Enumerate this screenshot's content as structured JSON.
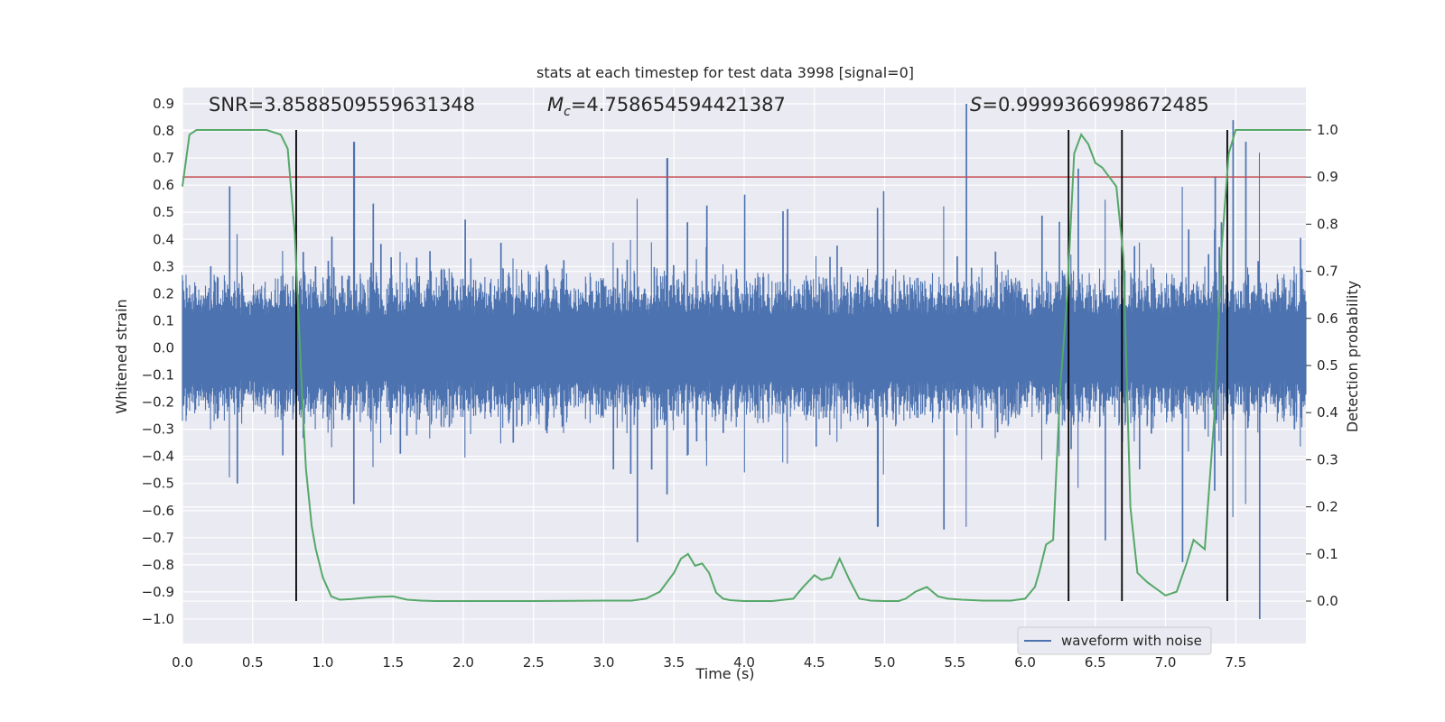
{
  "chart_data": {
    "type": "line",
    "title": "stats at each timestep for test data 3998 [signal=0]",
    "xlabel": "Time (s)",
    "ylabel_left": "Whitened strain",
    "ylabel_right": "Detection probability",
    "xlim": [
      0.0,
      8.0
    ],
    "ylim_left": [
      -1.09,
      0.96
    ],
    "ylim_right": [
      -0.09,
      1.09
    ],
    "xticks": [
      "0.0",
      "0.5",
      "1.0",
      "1.5",
      "2.0",
      "2.5",
      "3.0",
      "3.5",
      "4.0",
      "4.5",
      "5.0",
      "5.5",
      "6.0",
      "6.5",
      "7.0",
      "7.5"
    ],
    "yticks_left": [
      "0.9",
      "0.8",
      "0.7",
      "0.6",
      "0.5",
      "0.4",
      "0.3",
      "0.2",
      "0.1",
      "0.0",
      "-0.1",
      "-0.2",
      "-0.3",
      "-0.4",
      "-0.5",
      "-0.6",
      "-0.7",
      "-0.8",
      "-0.9",
      "-1.0"
    ],
    "yticks_right": [
      "1.0",
      "0.9",
      "0.8",
      "0.7",
      "0.6",
      "0.5",
      "0.4",
      "0.3",
      "0.2",
      "0.1",
      "0.0"
    ],
    "grid": true,
    "legend_position": "lower-right",
    "annotations": {
      "snr": "SNR=3.8588509559631348",
      "mc_symbol": "M",
      "mc_sub": "c",
      "mc_value": "=4.758654594421387",
      "s_symbol": "S",
      "s_value": "=0.9999366998672485"
    },
    "series": [
      {
        "name": "waveform with noise",
        "axis": "left",
        "color": "#4c72b0",
        "style": "dense noise",
        "range": [
          -0.45,
          0.45
        ],
        "peaks": [
          {
            "x": 1.22,
            "y": 0.76
          },
          {
            "x": 5.58,
            "y": 0.9
          },
          {
            "x": 7.48,
            "y": 0.84
          },
          {
            "x": 7.57,
            "y": 0.76
          },
          {
            "x": 7.67,
            "y": -1.0
          },
          {
            "x": 7.12,
            "y": -0.79
          },
          {
            "x": 6.57,
            "y": -0.71
          },
          {
            "x": 3.45,
            "y": 0.7
          },
          {
            "x": 5.42,
            "y": -0.67
          },
          {
            "x": 4.95,
            "y": -0.66
          }
        ]
      },
      {
        "name": "detection probability",
        "axis": "right",
        "color": "#55a868",
        "x": [
          0.0,
          0.05,
          0.1,
          0.2,
          0.3,
          0.4,
          0.5,
          0.6,
          0.7,
          0.75,
          0.8,
          0.85,
          0.88,
          0.92,
          0.95,
          1.0,
          1.06,
          1.12,
          1.2,
          1.3,
          1.4,
          1.5,
          1.6,
          1.7,
          1.8,
          2.0,
          2.5,
          3.0,
          3.2,
          3.3,
          3.4,
          3.45,
          3.5,
          3.55,
          3.6,
          3.65,
          3.7,
          3.75,
          3.8,
          3.85,
          3.9,
          4.0,
          4.2,
          4.35,
          4.42,
          4.5,
          4.55,
          4.62,
          4.68,
          4.75,
          4.82,
          4.9,
          5.0,
          5.1,
          5.15,
          5.22,
          5.3,
          5.38,
          5.45,
          5.55,
          5.7,
          5.9,
          6.0,
          6.07,
          6.1,
          6.15,
          6.2,
          6.25,
          6.3,
          6.35,
          6.4,
          6.45,
          6.5,
          6.55,
          6.6,
          6.65,
          6.7,
          6.75,
          6.8,
          6.87,
          7.0,
          7.08,
          7.15,
          7.2,
          7.28,
          7.35,
          7.4,
          7.45,
          7.5,
          7.55,
          7.6,
          7.7,
          7.8,
          8.0
        ],
        "y": [
          0.88,
          0.99,
          1.0,
          1.0,
          1.0,
          1.0,
          1.0,
          1.0,
          0.99,
          0.96,
          0.78,
          0.45,
          0.28,
          0.16,
          0.11,
          0.05,
          0.01,
          0.003,
          0.004,
          0.007,
          0.009,
          0.01,
          0.003,
          0.001,
          0.0,
          0.0,
          0.0,
          0.001,
          0.001,
          0.005,
          0.02,
          0.04,
          0.06,
          0.09,
          0.1,
          0.075,
          0.08,
          0.06,
          0.018,
          0.005,
          0.002,
          0.0,
          0.0,
          0.005,
          0.03,
          0.055,
          0.045,
          0.05,
          0.09,
          0.045,
          0.005,
          0.001,
          0.0,
          0.0,
          0.005,
          0.02,
          0.03,
          0.01,
          0.005,
          0.003,
          0.001,
          0.001,
          0.005,
          0.03,
          0.06,
          0.12,
          0.13,
          0.45,
          0.65,
          0.95,
          0.99,
          0.97,
          0.93,
          0.92,
          0.9,
          0.88,
          0.73,
          0.2,
          0.06,
          0.04,
          0.012,
          0.02,
          0.08,
          0.13,
          0.11,
          0.4,
          0.75,
          0.95,
          1.0,
          1.0,
          1.0,
          1.0,
          1.0,
          1.0
        ]
      }
    ],
    "threshold_line": {
      "axis": "right",
      "y": 0.9,
      "color": "#c44e52"
    },
    "vertical_lines_x": [
      0.81,
      6.31,
      6.69,
      7.44
    ]
  }
}
